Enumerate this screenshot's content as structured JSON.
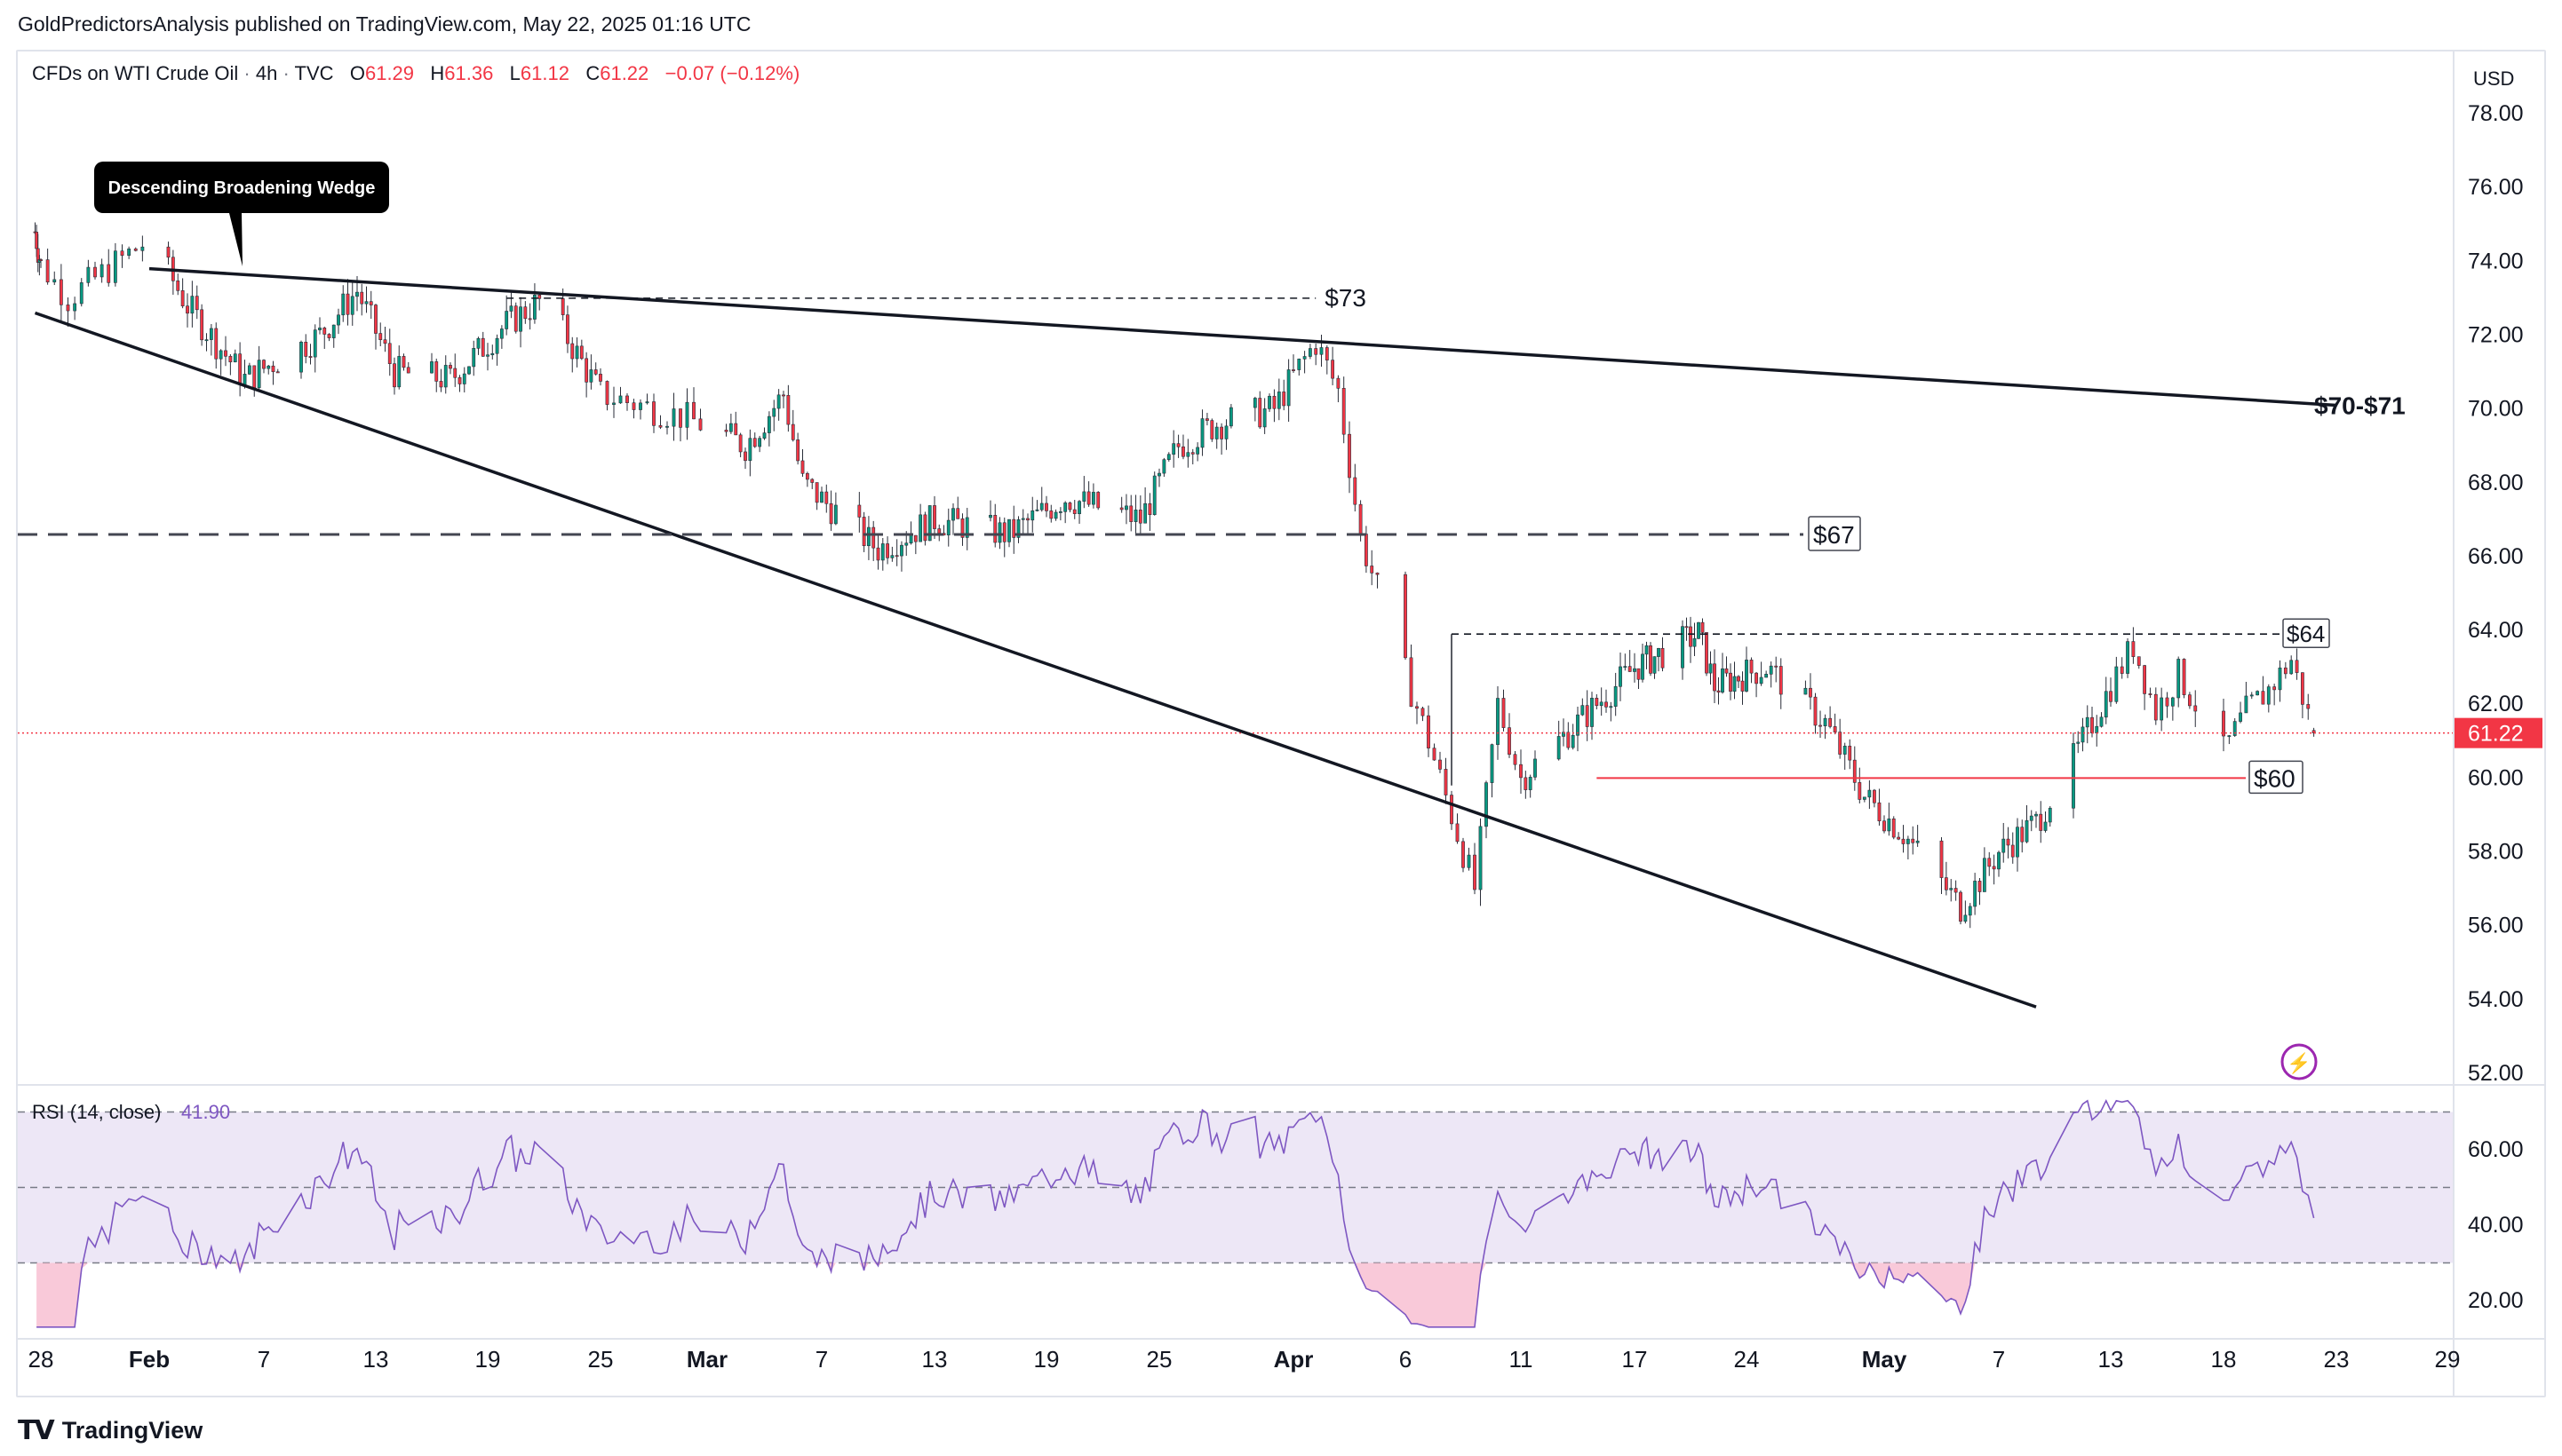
{
  "header": {
    "published_text": "GoldPredictorsAnalysis published on TradingView.com, May 22, 2025 01:16 UTC"
  },
  "legend": {
    "symbol": "CFDs on WTI Crude Oil",
    "interval": "4h",
    "source": "TVC",
    "open_label": "O",
    "open": "61.29",
    "high_label": "H",
    "high": "61.36",
    "low_label": "L",
    "low": "61.12",
    "close_label": "C",
    "close": "61.22",
    "change": "−0.07 (−0.12%)"
  },
  "price_axis": {
    "currency": "USD",
    "ticks": [
      "78.00",
      "76.00",
      "74.00",
      "72.00",
      "70.00",
      "68.00",
      "66.00",
      "64.00",
      "62.00",
      "60.00",
      "58.00",
      "56.00",
      "54.00",
      "52.00"
    ],
    "last_price": "61.22"
  },
  "annotations": {
    "wedge_label": "Descending Broadening Wedge",
    "level_73": "$73",
    "level_70_71": "$70-$71",
    "level_67": "$67",
    "level_64": "$64",
    "level_60": "$60"
  },
  "rsi": {
    "legend": "RSI (14, close)",
    "value": "41.90",
    "ticks": [
      "60.00",
      "40.00",
      "20.00"
    ]
  },
  "time_axis": {
    "labels": [
      "28",
      "Feb",
      "7",
      "13",
      "19",
      "25",
      "Mar",
      "7",
      "13",
      "19",
      "25",
      "Apr",
      "6",
      "11",
      "17",
      "24",
      "May",
      "7",
      "13",
      "18",
      "23",
      "29"
    ]
  },
  "footer": {
    "brand": "TradingView"
  },
  "colors": {
    "up": "#089981",
    "down": "#f23645",
    "rsi_line": "#7e57c2",
    "rsi_band": "#ede7f6",
    "oversold_fill": "#f8bbd0"
  },
  "chart_data": {
    "type": "candlestick",
    "title": "CFDs on WTI Crude Oil · 4h · TVC",
    "ylim": [
      51,
      79
    ],
    "ohlc_last": {
      "open": 61.29,
      "high": 61.36,
      "low": 61.12,
      "close": 61.22,
      "change": -0.07,
      "change_pct": -0.12
    },
    "x_dates": [
      "2025-01-28",
      "2025-02-01",
      "2025-02-07",
      "2025-02-13",
      "2025-02-19",
      "2025-02-25",
      "2025-03-01",
      "2025-03-07",
      "2025-03-13",
      "2025-03-19",
      "2025-03-25",
      "2025-04-01",
      "2025-04-06",
      "2025-04-11",
      "2025-04-17",
      "2025-04-24",
      "2025-05-01",
      "2025-05-07",
      "2025-05-13",
      "2025-05-18",
      "2025-05-23",
      "2025-05-29"
    ],
    "price_path_close": [
      {
        "date": "2025-01-27",
        "close": 74.8
      },
      {
        "date": "2025-01-29",
        "close": 73.0
      },
      {
        "date": "2025-02-01",
        "close": 74.6
      },
      {
        "date": "2025-02-03",
        "close": 72.8
      },
      {
        "date": "2025-02-06",
        "close": 70.8
      },
      {
        "date": "2025-02-10",
        "close": 72.0
      },
      {
        "date": "2025-02-12",
        "close": 73.2
      },
      {
        "date": "2025-02-14",
        "close": 71.0
      },
      {
        "date": "2025-02-17",
        "close": 70.8
      },
      {
        "date": "2025-02-20",
        "close": 72.3
      },
      {
        "date": "2025-02-22",
        "close": 73.0
      },
      {
        "date": "2025-02-25",
        "close": 70.4
      },
      {
        "date": "2025-02-28",
        "close": 69.8
      },
      {
        "date": "2025-03-03",
        "close": 69.0
      },
      {
        "date": "2025-03-05",
        "close": 70.4
      },
      {
        "date": "2025-03-06",
        "close": 68.0
      },
      {
        "date": "2025-03-10",
        "close": 66.2
      },
      {
        "date": "2025-03-13",
        "close": 67.0
      },
      {
        "date": "2025-03-17",
        "close": 66.6
      },
      {
        "date": "2025-03-20",
        "close": 67.6
      },
      {
        "date": "2025-03-24",
        "close": 67.0
      },
      {
        "date": "2025-03-26",
        "close": 69.0
      },
      {
        "date": "2025-03-28",
        "close": 69.6
      },
      {
        "date": "2025-03-31",
        "close": 70.0
      },
      {
        "date": "2025-04-02",
        "close": 71.8
      },
      {
        "date": "2025-04-03",
        "close": 70.5
      },
      {
        "date": "2025-04-04",
        "close": 66.5
      },
      {
        "date": "2025-04-07",
        "close": 61.0
      },
      {
        "date": "2025-04-08",
        "close": 59.0
      },
      {
        "date": "2025-04-09",
        "close": 57.0
      },
      {
        "date": "2025-04-10",
        "close": 62.0
      },
      {
        "date": "2025-04-11",
        "close": 60.0
      },
      {
        "date": "2025-04-14",
        "close": 61.5
      },
      {
        "date": "2025-04-17",
        "close": 63.0
      },
      {
        "date": "2025-04-21",
        "close": 63.9
      },
      {
        "date": "2025-04-22",
        "close": 62.5
      },
      {
        "date": "2025-04-25",
        "close": 63.0
      },
      {
        "date": "2025-04-28",
        "close": 61.5
      },
      {
        "date": "2025-04-30",
        "close": 59.5
      },
      {
        "date": "2025-05-02",
        "close": 58.5
      },
      {
        "date": "2025-05-05",
        "close": 56.5
      },
      {
        "date": "2025-05-07",
        "close": 58.0
      },
      {
        "date": "2025-05-09",
        "close": 58.8
      },
      {
        "date": "2025-05-11",
        "close": 60.5
      },
      {
        "date": "2025-05-13",
        "close": 62.5
      },
      {
        "date": "2025-05-14",
        "close": 63.6
      },
      {
        "date": "2025-05-15",
        "close": 61.8
      },
      {
        "date": "2025-05-16",
        "close": 62.8
      },
      {
        "date": "2025-05-18",
        "close": 60.7
      },
      {
        "date": "2025-05-19",
        "close": 61.8
      },
      {
        "date": "2025-05-20",
        "close": 62.4
      },
      {
        "date": "2025-05-21",
        "close": 63.2
      },
      {
        "date": "2025-05-22",
        "close": 61.22
      }
    ],
    "levels": [
      {
        "label": "$73",
        "price": 73.0
      },
      {
        "label": "$67",
        "price": 66.6
      },
      {
        "label": "$64",
        "price": 63.9
      },
      {
        "label": "$60",
        "price": 60.0
      }
    ],
    "trendlines": [
      {
        "label": "$70-$71",
        "name": "upper wedge line",
        "from": {
          "date": "2025-02-01",
          "price": 73.8
        },
        "to": {
          "date": "2025-05-23",
          "price": 70.1
        }
      },
      {
        "name": "lower wedge line",
        "from": {
          "date": "2025-01-27",
          "price": 72.6
        },
        "to": {
          "date": "2025-05-09",
          "price": 53.8
        }
      }
    ],
    "rsi": {
      "period": 14,
      "last": 41.9,
      "overbought": 70,
      "mid": 50,
      "oversold": 30,
      "ylim": [
        10,
        75
      ]
    }
  }
}
